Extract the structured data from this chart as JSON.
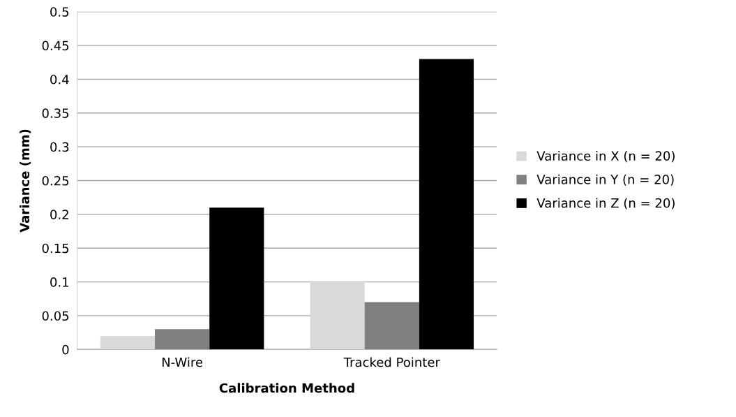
{
  "chart_data": {
    "type": "bar",
    "xlabel": "Calibration Method",
    "ylabel": "Variance (mm)",
    "categories": [
      "N-Wire",
      "Tracked Pointer"
    ],
    "series": [
      {
        "name": "Variance in X (n = 20)",
        "color": "#d9d9d9",
        "values": [
          0.02,
          0.1
        ]
      },
      {
        "name": "Variance in Y (n = 20)",
        "color": "#808080",
        "values": [
          0.03,
          0.07
        ]
      },
      {
        "name": "Variance in Z (n = 20)",
        "color": "#000000",
        "values": [
          0.21,
          0.43
        ]
      }
    ],
    "ylim": [
      0,
      0.5
    ],
    "yticks": [
      0,
      0.05,
      0.1,
      0.15,
      0.2,
      0.25,
      0.3,
      0.35,
      0.4,
      0.45,
      0.5
    ],
    "grid": "y",
    "legend": "right"
  }
}
